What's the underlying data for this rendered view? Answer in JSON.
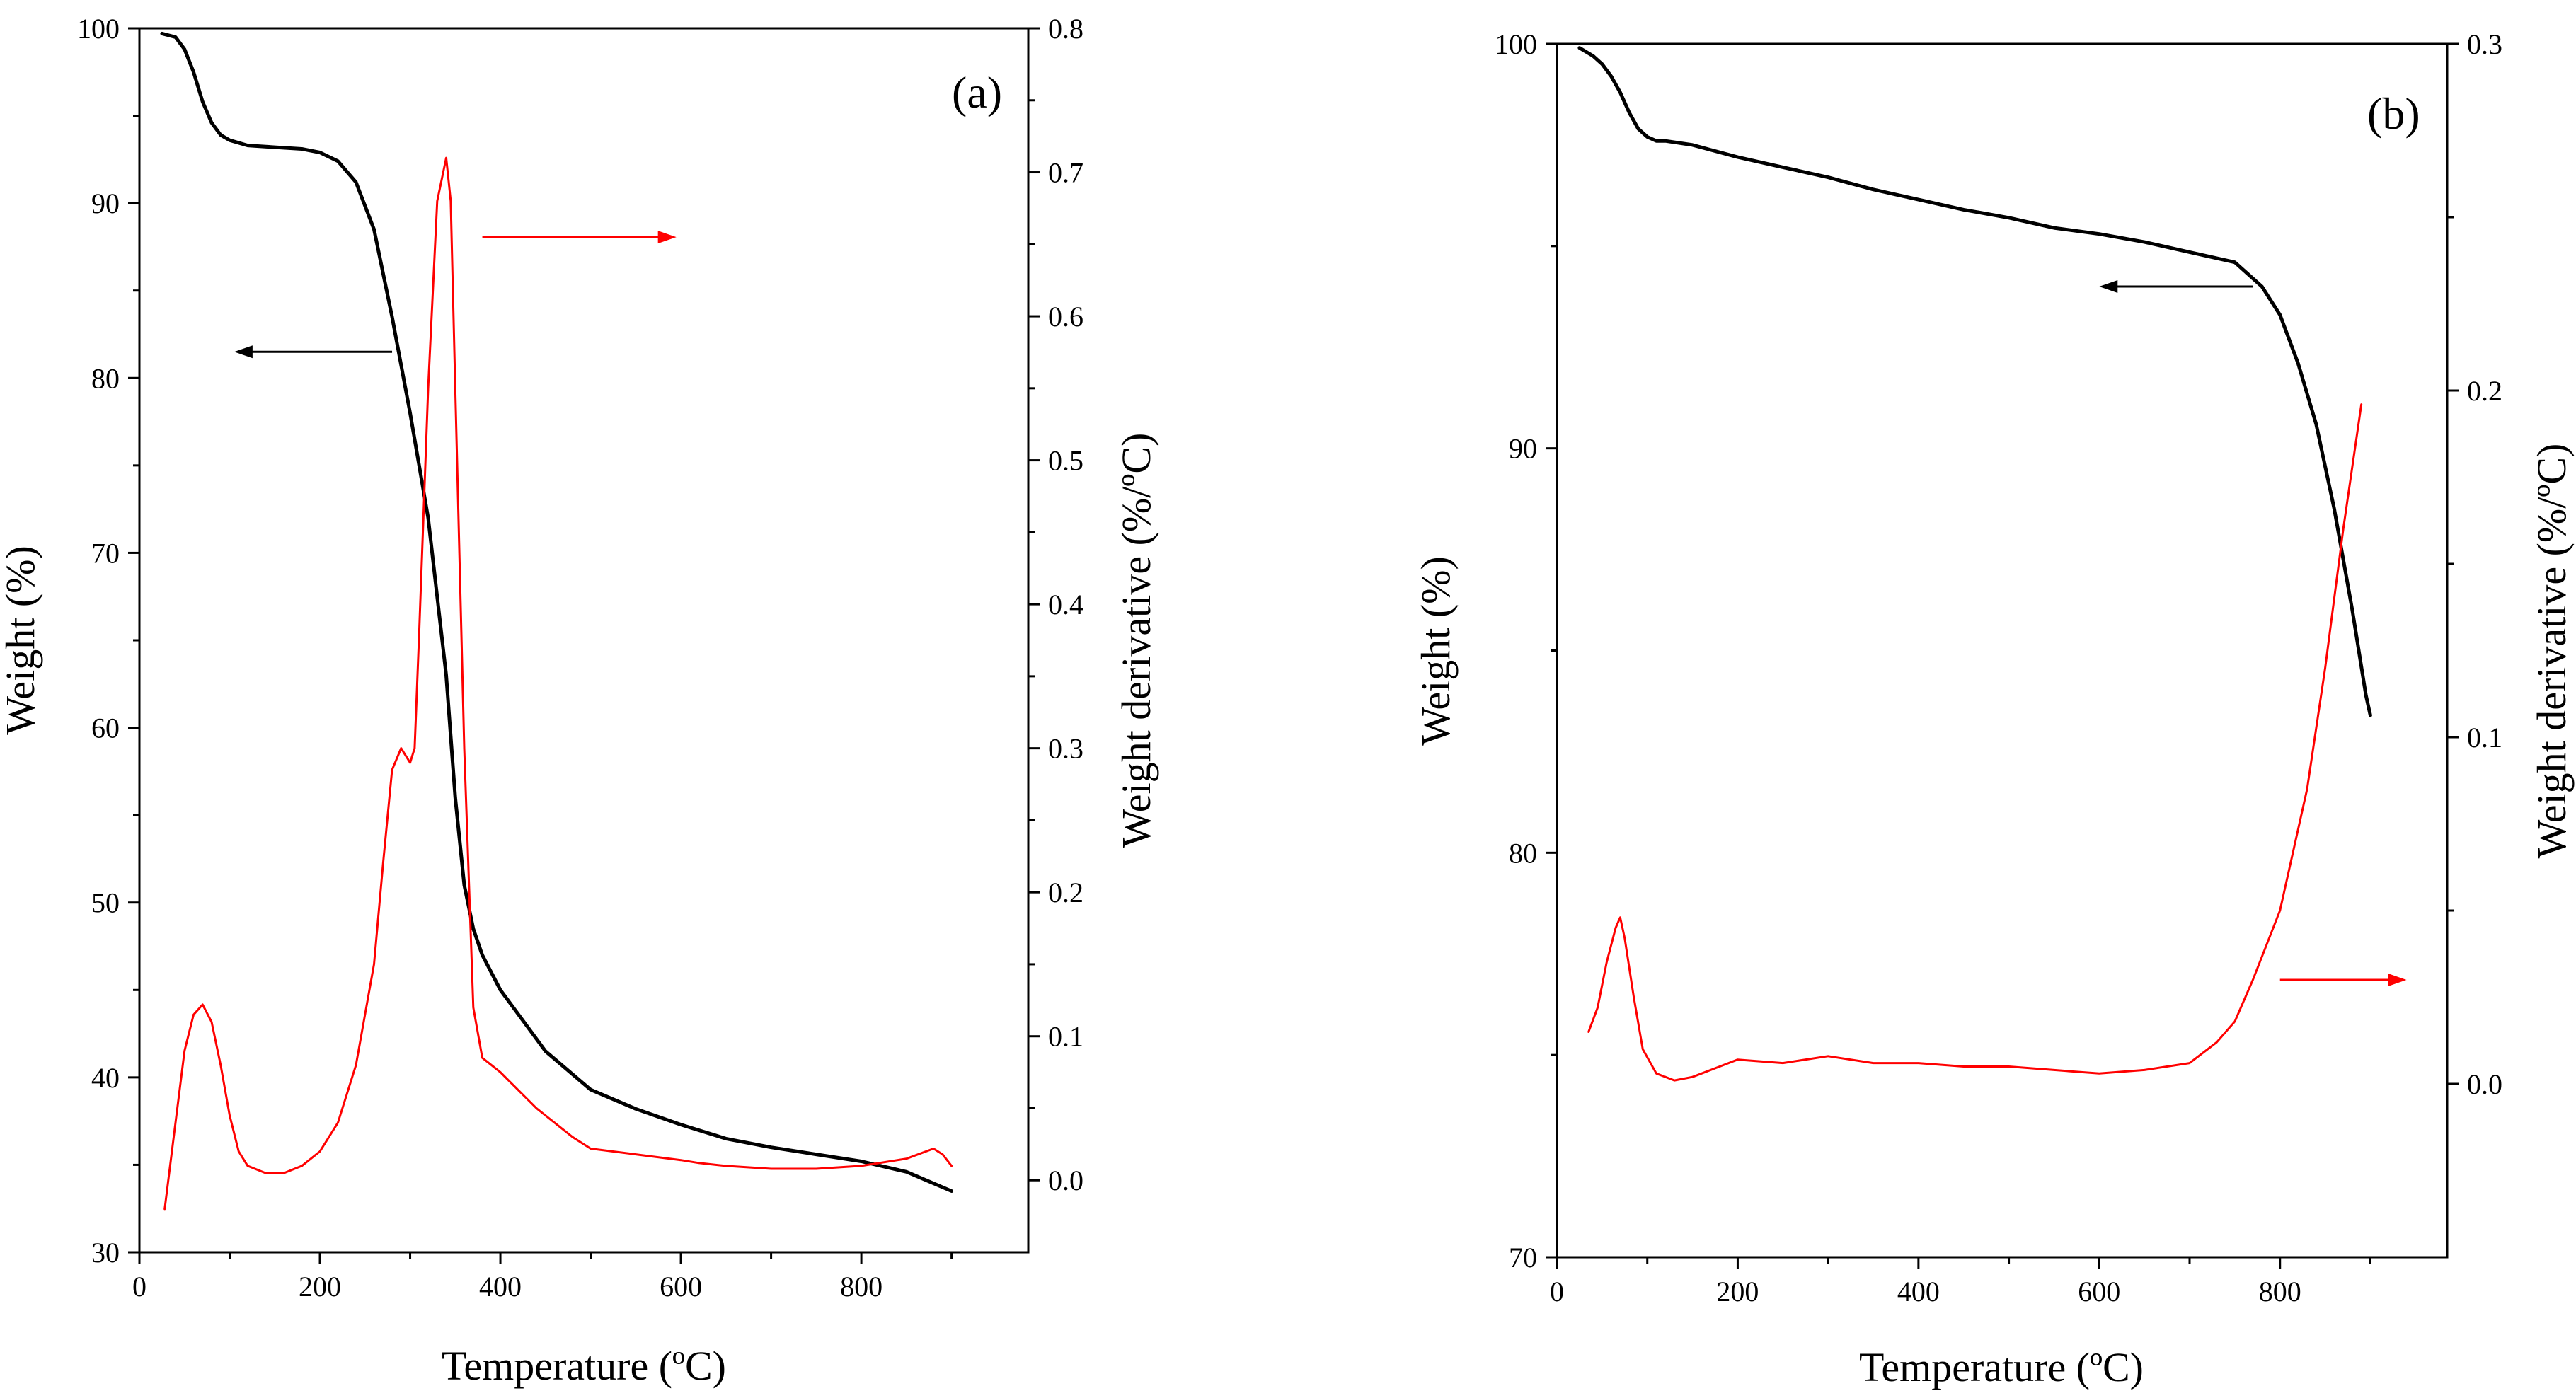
{
  "chart_data": [
    {
      "type": "line",
      "panel_label": "(a)",
      "xlabel": "Temperature (ºC)",
      "ylabel_left": "Weight (%)",
      "ylabel_right": "Weight derivative (%/ºC)",
      "xlim": [
        0,
        985
      ],
      "ylim_left": [
        30,
        100
      ],
      "ylim_right": [
        -0.05,
        0.8
      ],
      "x_ticks": [
        0,
        200,
        400,
        600,
        800
      ],
      "y_ticks_left": [
        30,
        40,
        50,
        60,
        70,
        80,
        90,
        100
      ],
      "y_ticks_right": [
        0.0,
        0.1,
        0.2,
        0.3,
        0.4,
        0.5,
        0.6,
        0.7,
        0.8
      ],
      "x_tick_labels": [
        "0",
        "200",
        "400",
        "600",
        "800"
      ],
      "y_tick_labels_left": [
        "30",
        "40",
        "50",
        "60",
        "70",
        "80",
        "90",
        "100"
      ],
      "y_tick_labels_right": [
        "0.0",
        "0.1",
        "0.2",
        "0.3",
        "0.4",
        "0.5",
        "0.6",
        "0.7",
        "0.8"
      ],
      "series": [
        {
          "name": "Weight",
          "axis": "left",
          "color": "#000000",
          "x": [
            25,
            40,
            50,
            60,
            70,
            80,
            90,
            100,
            120,
            150,
            180,
            200,
            220,
            240,
            260,
            280,
            300,
            320,
            340,
            350,
            360,
            370,
            380,
            400,
            450,
            500,
            550,
            600,
            650,
            700,
            750,
            800,
            850,
            900
          ],
          "y": [
            99.7,
            99.5,
            98.8,
            97.5,
            95.8,
            94.6,
            93.9,
            93.6,
            93.3,
            93.2,
            93.1,
            92.9,
            92.4,
            91.2,
            88.5,
            83.5,
            78.0,
            72.0,
            63.0,
            56.0,
            51.0,
            48.5,
            47.0,
            45.0,
            41.5,
            39.3,
            38.2,
            37.3,
            36.5,
            36.0,
            35.6,
            35.2,
            34.6,
            33.5
          ]
        },
        {
          "name": "Weight derivative",
          "axis": "right",
          "color": "#ff0000",
          "x": [
            28,
            40,
            50,
            60,
            70,
            80,
            90,
            100,
            110,
            120,
            140,
            160,
            180,
            200,
            220,
            240,
            260,
            270,
            280,
            290,
            300,
            305,
            310,
            320,
            330,
            340,
            345,
            350,
            360,
            370,
            380,
            400,
            440,
            480,
            500,
            550,
            600,
            620,
            650,
            700,
            750,
            800,
            850,
            880,
            890,
            900
          ],
          "y": [
            -0.02,
            0.04,
            0.09,
            0.115,
            0.122,
            0.11,
            0.08,
            0.045,
            0.02,
            0.01,
            0.005,
            0.005,
            0.01,
            0.02,
            0.04,
            0.08,
            0.15,
            0.22,
            0.285,
            0.3,
            0.29,
            0.3,
            0.38,
            0.55,
            0.68,
            0.71,
            0.68,
            0.55,
            0.3,
            0.12,
            0.085,
            0.075,
            0.05,
            0.03,
            0.022,
            0.018,
            0.014,
            0.012,
            0.01,
            0.008,
            0.008,
            0.01,
            0.015,
            0.022,
            0.018,
            0.01
          ]
        }
      ],
      "annotations": [
        {
          "type": "arrow",
          "color": "#000000",
          "direction": "left",
          "x_from": 280,
          "x_to": 105,
          "y_axis": "left",
          "y": 81.5
        },
        {
          "type": "arrow",
          "color": "#ff0000",
          "direction": "right",
          "x_from": 380,
          "x_to": 595,
          "y_axis": "right",
          "y": 0.655
        }
      ]
    },
    {
      "type": "line",
      "panel_label": "(b)",
      "xlabel": "Temperature (ºC)",
      "ylabel_left": "Weight (%)",
      "ylabel_right": "Weight derivative (%/ºC)",
      "xlim": [
        0,
        985
      ],
      "ylim_left": [
        70,
        100
      ],
      "ylim_right": [
        -0.05,
        0.3
      ],
      "x_ticks": [
        0,
        200,
        400,
        600,
        800
      ],
      "y_ticks_left": [
        70,
        80,
        90,
        100
      ],
      "y_ticks_right": [
        0.0,
        0.1,
        0.2,
        0.3
      ],
      "x_tick_labels": [
        "0",
        "200",
        "400",
        "600",
        "800"
      ],
      "y_tick_labels_left": [
        "70",
        "80",
        "90",
        "100"
      ],
      "y_tick_labels_right": [
        "0.0",
        "0.1",
        "0.2",
        "0.3"
      ],
      "series": [
        {
          "name": "Weight",
          "axis": "left",
          "color": "#000000",
          "x": [
            25,
            40,
            50,
            60,
            70,
            80,
            90,
            100,
            110,
            120,
            150,
            200,
            250,
            300,
            350,
            400,
            450,
            500,
            550,
            600,
            650,
            700,
            750,
            780,
            800,
            820,
            840,
            860,
            880,
            895,
            900
          ],
          "y": [
            99.9,
            99.7,
            99.5,
            99.2,
            98.8,
            98.3,
            97.9,
            97.7,
            97.6,
            97.6,
            97.5,
            97.2,
            96.95,
            96.7,
            96.4,
            96.15,
            95.9,
            95.7,
            95.45,
            95.3,
            95.1,
            94.85,
            94.6,
            94.0,
            93.3,
            92.1,
            90.6,
            88.5,
            86.0,
            83.9,
            83.4
          ]
        },
        {
          "name": "Weight derivative",
          "axis": "right",
          "color": "#ff0000",
          "x": [
            35,
            45,
            55,
            65,
            70,
            75,
            85,
            95,
            110,
            130,
            150,
            180,
            200,
            250,
            300,
            350,
            400,
            450,
            500,
            550,
            600,
            650,
            700,
            730,
            750,
            770,
            800,
            830,
            850,
            870,
            890
          ],
          "y": [
            0.015,
            0.022,
            0.035,
            0.045,
            0.048,
            0.042,
            0.025,
            0.01,
            0.003,
            0.001,
            0.002,
            0.005,
            0.007,
            0.006,
            0.008,
            0.006,
            0.006,
            0.005,
            0.005,
            0.004,
            0.003,
            0.004,
            0.006,
            0.012,
            0.018,
            0.03,
            0.05,
            0.085,
            0.12,
            0.16,
            0.196
          ]
        }
      ],
      "annotations": [
        {
          "type": "arrow",
          "color": "#000000",
          "direction": "left",
          "x_from": 770,
          "x_to": 600,
          "y_axis": "left",
          "y": 94.0
        },
        {
          "type": "arrow",
          "color": "#ff0000",
          "direction": "right",
          "x_from": 800,
          "x_to": 940,
          "y_axis": "right",
          "y": 0.03
        }
      ]
    }
  ]
}
